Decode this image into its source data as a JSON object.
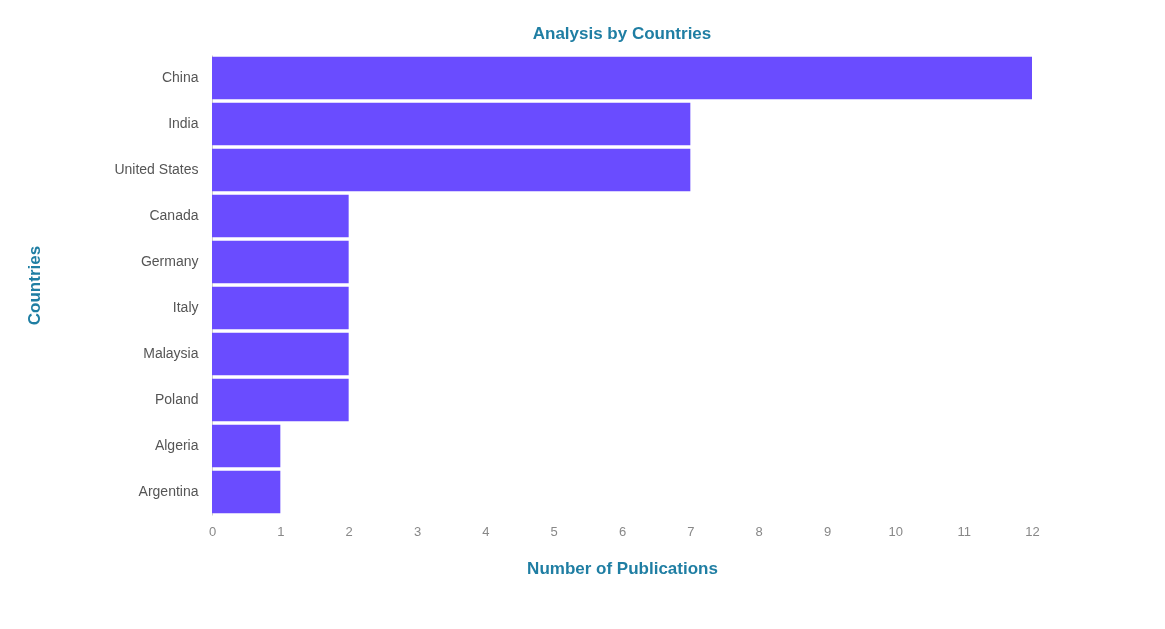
{
  "chart_data": {
    "type": "bar",
    "orientation": "horizontal",
    "title": "Analysis by Countries",
    "xlabel": "Number of Publications",
    "ylabel": "Countries",
    "categories": [
      "China",
      "India",
      "United States",
      "Canada",
      "Germany",
      "Italy",
      "Malaysia",
      "Poland",
      "Algeria",
      "Argentina"
    ],
    "values": [
      12,
      7,
      7,
      2,
      2,
      2,
      2,
      2,
      1,
      1
    ],
    "color": "#6a4cff",
    "xlim": [
      0,
      12
    ],
    "xticks": [
      0,
      1,
      2,
      3,
      4,
      5,
      6,
      7,
      8,
      9,
      10,
      11,
      12
    ],
    "grid": false
  }
}
